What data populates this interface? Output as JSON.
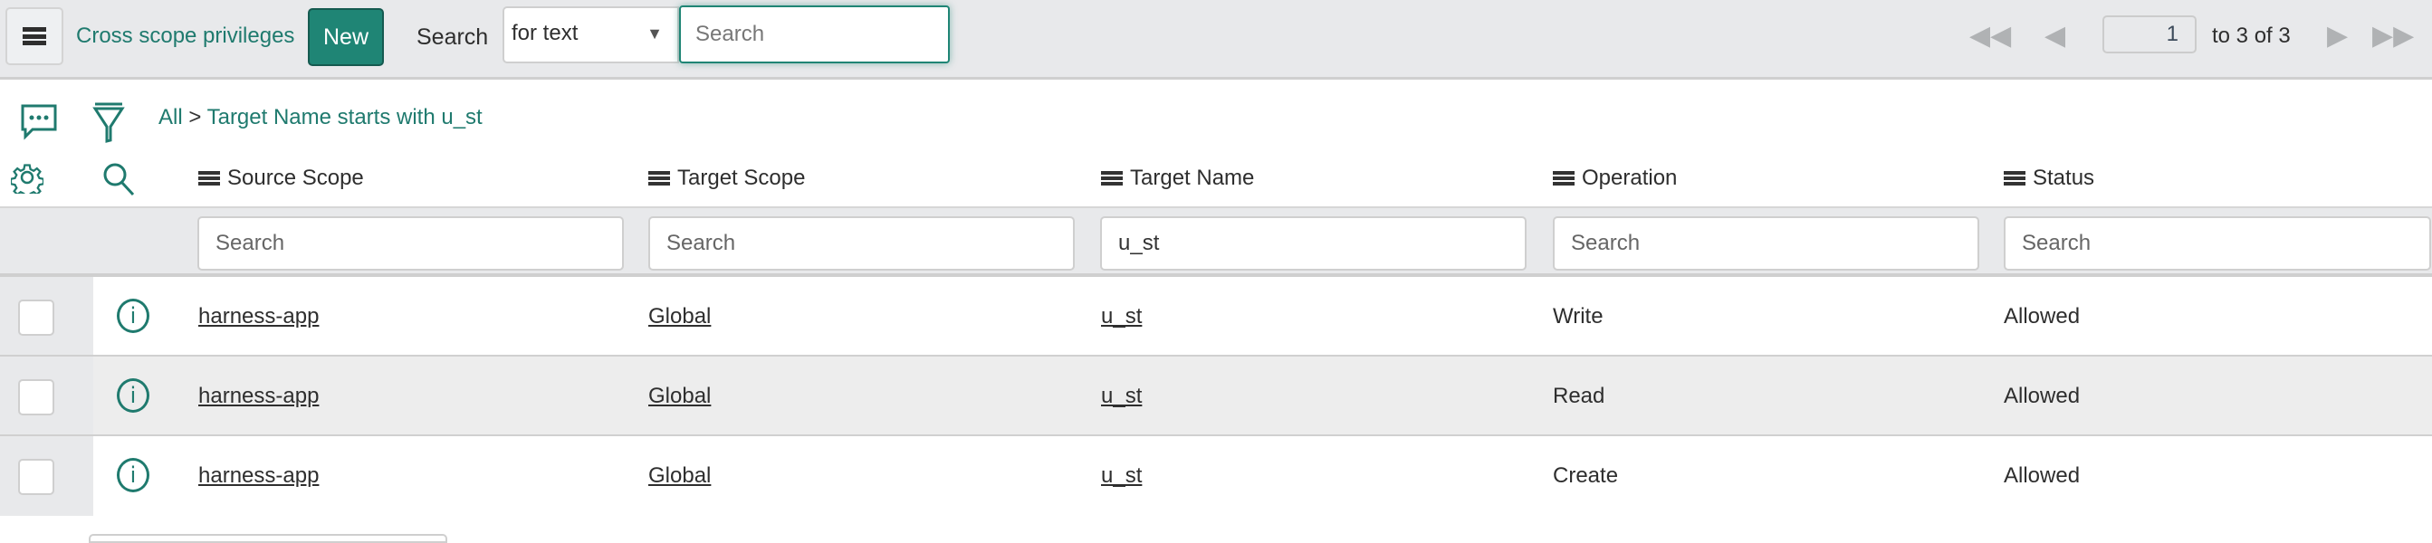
{
  "toolbar": {
    "title": "Cross scope privileges",
    "new_label": "New",
    "search_label": "Search",
    "search_field": "for text",
    "search_placeholder": "Search"
  },
  "pagination": {
    "current": "1",
    "range_text": "to 3 of 3"
  },
  "breadcrumb": {
    "all": "All",
    "separator": ">",
    "filter": "Target Name starts with u_st"
  },
  "columns": [
    {
      "label": "Source Scope",
      "filter_value": "",
      "filter_placeholder": "Search"
    },
    {
      "label": "Target Scope",
      "filter_value": "",
      "filter_placeholder": "Search"
    },
    {
      "label": "Target Name",
      "filter_value": "u_st",
      "filter_placeholder": "Search"
    },
    {
      "label": "Operation",
      "filter_value": "",
      "filter_placeholder": "Search"
    },
    {
      "label": "Status",
      "filter_value": "",
      "filter_placeholder": "Search"
    }
  ],
  "rows": [
    {
      "source_scope": "harness-app",
      "target_scope": "Global",
      "target_name": "u_st",
      "operation": "Write",
      "status": "Allowed"
    },
    {
      "source_scope": "harness-app",
      "target_scope": "Global",
      "target_name": "u_st",
      "operation": "Read",
      "status": "Allowed"
    },
    {
      "source_scope": "harness-app",
      "target_scope": "Global",
      "target_name": "u_st",
      "operation": "Create",
      "status": "Allowed"
    }
  ],
  "colors": {
    "accent": "#1f8575",
    "link": "#1f7a6e",
    "toolbar_bg": "#e8e9eb"
  }
}
